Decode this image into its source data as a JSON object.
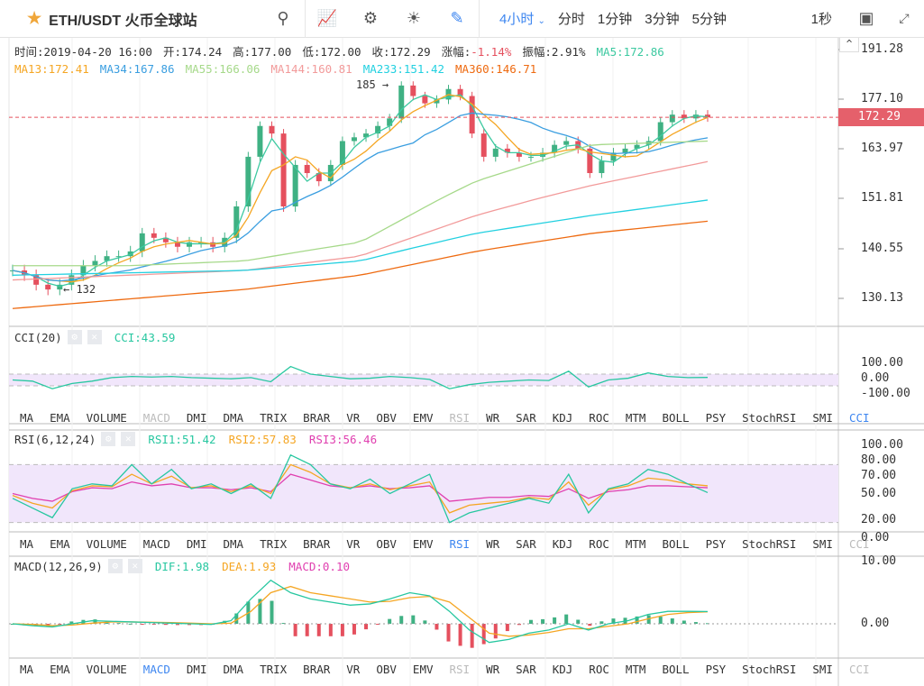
{
  "header": {
    "symbol": "ETH/USDT 火币全球站",
    "periods": [
      "4小时",
      "分时",
      "1分钟",
      "3分钟",
      "5分钟"
    ],
    "active_period": "4小时",
    "right_label": "1秒"
  },
  "info": {
    "time": "时间:2019-04-20 16:00",
    "open": "开:174.24",
    "high": "高:177.00",
    "low": "低:172.00",
    "close": "收:172.29",
    "change_label": "涨幅:",
    "change": "-1.14%",
    "amp": "振幅:2.91%",
    "ma": [
      {
        "t": "MA5:172.86",
        "c": "#3cc9a0"
      },
      {
        "t": "MA13:172.41",
        "c": "#f5a623"
      },
      {
        "t": "MA34:167.86",
        "c": "#3a9ee0"
      },
      {
        "t": "MA55:166.06",
        "c": "#a6d98a"
      },
      {
        "t": "MA144:160.81",
        "c": "#f29a9a"
      },
      {
        "t": "MA233:151.42",
        "c": "#22d0e0"
      },
      {
        "t": "MA360:146.71",
        "c": "#ee6a10"
      }
    ]
  },
  "price_axis": [
    "191.28",
    "177.10",
    "163.97",
    "151.81",
    "140.55",
    "130.13"
  ],
  "last_price": "172.29",
  "high_mark": "185",
  "low_mark": "132",
  "colors": {
    "up": "#3fb183",
    "down": "#e5505e",
    "accent": "#3d86f0"
  },
  "closes": [
    136,
    135,
    133,
    132,
    133,
    135,
    137,
    138,
    139,
    139,
    140,
    144,
    143,
    142,
    141,
    142,
    142,
    141,
    143,
    150,
    162,
    170,
    168,
    150,
    160,
    158,
    156,
    160,
    166,
    167,
    168,
    170,
    172,
    181,
    178,
    176,
    177,
    180,
    178,
    168,
    162,
    164,
    163,
    162,
    162,
    163,
    165,
    166,
    164,
    158,
    161,
    163,
    164,
    165,
    166,
    171,
    173,
    172,
    173,
    172.29
  ],
  "ma_long": {
    "ma55": [
      137,
      137,
      138,
      142,
      156,
      165,
      166
    ],
    "ma144": [
      134,
      135,
      136,
      139,
      148,
      155,
      160.81
    ],
    "ma233": [
      135,
      135.5,
      136,
      138,
      144,
      148,
      151.42
    ],
    "ma360": [
      128,
      130,
      132,
      135,
      140,
      144,
      146.71
    ]
  },
  "cci": {
    "head": "CCI(20)",
    "value": "CCI:43.59",
    "axis": [
      "100.00",
      "0.00",
      "-100.00"
    ],
    "values": [
      0,
      -20,
      -150,
      -60,
      -20,
      40,
      60,
      50,
      60,
      40,
      30,
      20,
      40,
      -30,
      230,
      100,
      60,
      20,
      30,
      60,
      40,
      10,
      -150,
      -80,
      -40,
      -20,
      0,
      -10,
      150,
      -120,
      0,
      30,
      120,
      60,
      40,
      43
    ]
  },
  "rsi": {
    "head": "RSI(6,12,24)",
    "values_text": [
      {
        "t": "RSI1:51.42",
        "c": "#27c7a0"
      },
      {
        "t": "RSI2:57.83",
        "c": "#f5a623"
      },
      {
        "t": "RSI3:56.46",
        "c": "#e040b0"
      }
    ],
    "axis": [
      "100.00",
      "80.00",
      "70.00",
      "50.00",
      "20.00",
      "0.00"
    ],
    "rsi1": [
      45,
      35,
      25,
      55,
      60,
      58,
      80,
      60,
      75,
      55,
      60,
      50,
      60,
      45,
      90,
      80,
      60,
      55,
      65,
      50,
      60,
      70,
      20,
      30,
      35,
      40,
      45,
      40,
      70,
      30,
      55,
      60,
      75,
      70,
      60,
      51
    ],
    "rsi2": [
      48,
      40,
      35,
      53,
      58,
      57,
      70,
      60,
      68,
      56,
      58,
      52,
      58,
      50,
      80,
      72,
      60,
      56,
      60,
      54,
      58,
      62,
      30,
      38,
      40,
      42,
      46,
      44,
      62,
      38,
      54,
      58,
      66,
      64,
      60,
      58
    ],
    "rsi3": [
      50,
      45,
      42,
      52,
      56,
      55,
      62,
      58,
      60,
      56,
      56,
      54,
      56,
      52,
      70,
      64,
      58,
      56,
      58,
      55,
      56,
      58,
      42,
      44,
      46,
      46,
      48,
      47,
      55,
      45,
      52,
      54,
      58,
      58,
      57,
      56
    ]
  },
  "macd": {
    "head": "MACD(12,26,9)",
    "values_text": [
      {
        "t": "DIF:1.98",
        "c": "#27c7a0"
      },
      {
        "t": "DEA:1.93",
        "c": "#f5a623"
      },
      {
        "t": "MACD:0.10",
        "c": "#e040b0"
      }
    ],
    "axis": [
      "10.00",
      "0.00"
    ],
    "dif": [
      0,
      -0.3,
      -0.5,
      0,
      0.5,
      0.4,
      0.3,
      0.2,
      0.1,
      0,
      -0.1,
      0.5,
      4,
      7,
      5,
      4,
      3.5,
      3,
      3.2,
      4,
      5,
      4.5,
      2,
      -1,
      -3,
      -2.5,
      -1.5,
      -1,
      0,
      -1,
      0,
      0.5,
      1.5,
      2,
      2,
      1.98
    ],
    "dea": [
      0,
      -0.1,
      -0.3,
      -0.2,
      0.1,
      0.3,
      0.3,
      0.25,
      0.2,
      0.1,
      0,
      0.1,
      2,
      5,
      6,
      5,
      4.5,
      4,
      3.5,
      3.6,
      4.2,
      4.4,
      3.5,
      1,
      -1.5,
      -2,
      -1.8,
      -1.4,
      -0.8,
      -0.8,
      -0.4,
      0,
      0.8,
      1.5,
      1.8,
      1.93
    ]
  },
  "tabs": [
    "MA",
    "EMA",
    "VOLUME",
    "MACD",
    "DMI",
    "DMA",
    "TRIX",
    "BRAR",
    "VR",
    "OBV",
    "EMV",
    "RSI",
    "WR",
    "SAR",
    "KDJ",
    "ROC",
    "MTM",
    "BOLL",
    "PSY",
    "StochRSI",
    "SMI",
    "CCI"
  ]
}
